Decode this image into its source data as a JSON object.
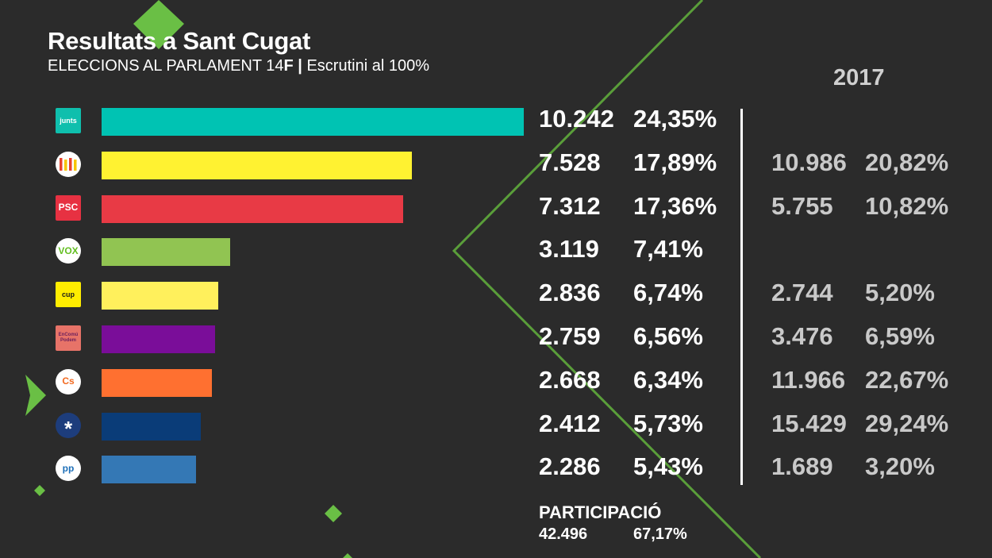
{
  "header": {
    "title": "Resultats a Sant Cugat",
    "subtitle_prefix": "ELECCIONS AL PARLAMENT 14",
    "subtitle_bold": "F |",
    "subtitle_suffix": " Escrutini al 100%",
    "previous_year": "2017"
  },
  "colors": {
    "background": "#2b2b2b",
    "accent_green": "#6abf45"
  },
  "chart_data": {
    "type": "bar",
    "orientation": "horizontal",
    "categories": [
      "junts",
      "ERC",
      "PSC",
      "VOX",
      "CUP",
      "En Comú Podem",
      "Cs",
      "PDeCAT",
      "PP"
    ],
    "series": [
      {
        "values": [
          10242,
          7528,
          7312,
          3119,
          2836,
          2759,
          2668,
          2412,
          2286
        ]
      }
    ],
    "xlim": [
      0,
      10242
    ],
    "grid": false,
    "legend": "none"
  },
  "parties": [
    {
      "logo_text": "junts",
      "logo_icon": "junts-logo-icon",
      "logo_bg": "#0fbfad",
      "logo_fg": "#ffffff",
      "logo_shape": "square",
      "color": "#00c3b3",
      "votes": 10242,
      "votes_label": "10.242",
      "pct_label": "24,35%",
      "prev_votes_label": "",
      "prev_pct_label": ""
    },
    {
      "logo_text": "",
      "logo_icon": "erc-logo-icon",
      "logo_bg": "#ffffff",
      "logo_fg": "#e8442e",
      "logo_shape": "round",
      "color": "#fff231",
      "votes": 7528,
      "votes_label": "7.528",
      "pct_label": "17,89%",
      "prev_votes_label": "10.986",
      "prev_pct_label": "20,82%"
    },
    {
      "logo_text": "PSC",
      "logo_icon": "psc-logo-icon",
      "logo_bg": "#e73142",
      "logo_fg": "#ffffff",
      "logo_shape": "square",
      "color": "#e83a45",
      "votes": 7312,
      "votes_label": "7.312",
      "pct_label": "17,36%",
      "prev_votes_label": "5.755",
      "prev_pct_label": "10,82%"
    },
    {
      "logo_text": "VOX",
      "logo_icon": "vox-logo-icon",
      "logo_bg": "#ffffff",
      "logo_fg": "#63be21",
      "logo_shape": "round",
      "color": "#91c452",
      "votes": 3119,
      "votes_label": "3.119",
      "pct_label": "7,41%",
      "prev_votes_label": "",
      "prev_pct_label": ""
    },
    {
      "logo_text": "cup",
      "logo_icon": "cup-logo-icon",
      "logo_bg": "#ffed00",
      "logo_fg": "#1a1a1a",
      "logo_shape": "square",
      "color": "#fff05c",
      "votes": 2836,
      "votes_label": "2.836",
      "pct_label": "6,74%",
      "prev_votes_label": "2.744",
      "prev_pct_label": "5,20%"
    },
    {
      "logo_text": "EnComú Podem",
      "logo_icon": "en-comu-podem-logo-icon",
      "logo_bg": "#e77368",
      "logo_fg": "#6b1f5c",
      "logo_shape": "square",
      "color": "#7a0d99",
      "votes": 2759,
      "votes_label": "2.759",
      "pct_label": "6,56%",
      "prev_votes_label": "3.476",
      "prev_pct_label": "6,59%"
    },
    {
      "logo_text": "Cs",
      "logo_icon": "cs-logo-icon",
      "logo_bg": "#ffffff",
      "logo_fg": "#f26a21",
      "logo_shape": "round",
      "color": "#ff7030",
      "votes": 2668,
      "votes_label": "2.668",
      "pct_label": "6,34%",
      "prev_votes_label": "11.966",
      "prev_pct_label": "22,67%"
    },
    {
      "logo_text": "*",
      "logo_icon": "pdecat-logo-icon",
      "logo_bg": "#1d3d7c",
      "logo_fg": "#ffffff",
      "logo_shape": "round",
      "color": "#0a3c78",
      "votes": 2412,
      "votes_label": "2.412",
      "pct_label": "5,73%",
      "prev_votes_label": "15.429",
      "prev_pct_label": "29,24%"
    },
    {
      "logo_text": "pp",
      "logo_icon": "pp-logo-icon",
      "logo_bg": "#ffffff",
      "logo_fg": "#1d6fb8",
      "logo_shape": "round",
      "color": "#3478b5",
      "votes": 2286,
      "votes_label": "2.286",
      "pct_label": "5,43%",
      "prev_votes_label": "1.689",
      "prev_pct_label": "3,20%"
    }
  ],
  "participation": {
    "label": "PARTICIPACIÓ",
    "votes": "42.496",
    "pct": "67,17%"
  }
}
